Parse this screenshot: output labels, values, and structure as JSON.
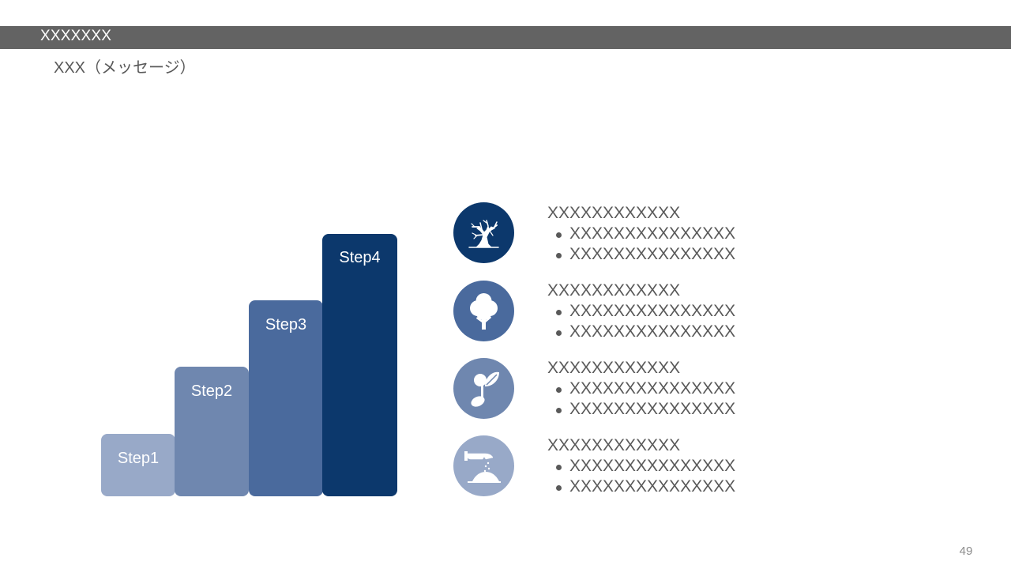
{
  "header": {
    "title": "XXXXXXX"
  },
  "subtitle": "XXX（メッセージ）",
  "steps": [
    {
      "label": "Step1",
      "color": "#98a9c8"
    },
    {
      "label": "Step2",
      "color": "#6f87af"
    },
    {
      "label": "Step3",
      "color": "#4a6a9d"
    },
    {
      "label": "Step4",
      "color": "#0c386c"
    }
  ],
  "items": [
    {
      "icon": "bare-tree-icon",
      "heading": "XXXXXXXXXXXX",
      "bullets": [
        "XXXXXXXXXXXXXXX",
        "XXXXXXXXXXXXXXX"
      ]
    },
    {
      "icon": "tree-icon",
      "heading": "XXXXXXXXXXXX",
      "bullets": [
        "XXXXXXXXXXXXXXX",
        "XXXXXXXXXXXXXXX"
      ]
    },
    {
      "icon": "sprout-icon",
      "heading": "XXXXXXXXXXXX",
      "bullets": [
        "XXXXXXXXXXXXXXX",
        "XXXXXXXXXXXXXXX"
      ]
    },
    {
      "icon": "sowing-seeds-icon",
      "heading": "XXXXXXXXXXXX",
      "bullets": [
        "XXXXXXXXXXXXXXX",
        "XXXXXXXXXXXXXXX"
      ]
    }
  ],
  "page_number": "49"
}
